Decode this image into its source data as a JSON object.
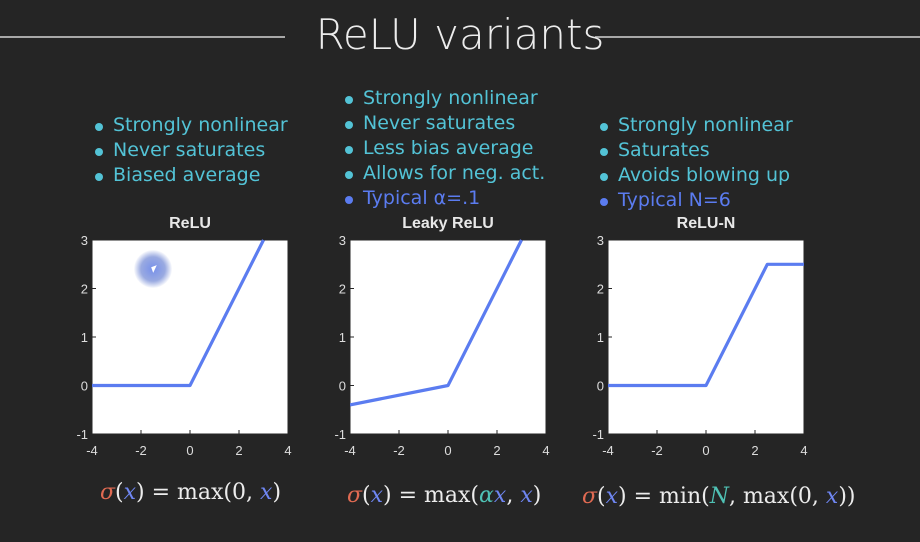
{
  "title": "ReLU variants",
  "panels": [
    {
      "bullets": [
        "Strongly nonlinear",
        "Never saturates",
        "Biased average"
      ],
      "highlight": [],
      "formula": {
        "lhs": "σ(x)",
        "eq": "=",
        "fn": "max",
        "args": "0, x"
      }
    },
    {
      "bullets": [
        "Strongly nonlinear",
        "Never saturates",
        "Less bias average",
        "Allows for neg. act.",
        "Typical α=.1"
      ],
      "highlight": [
        4
      ],
      "formula": {
        "lhs": "σ(x)",
        "eq": "=",
        "fn": "max",
        "args": "αx, x"
      }
    },
    {
      "bullets": [
        "Strongly nonlinear",
        "Saturates",
        "Avoids blowing up",
        "Typical N=6"
      ],
      "highlight": [
        3
      ],
      "formula": {
        "lhs": "σ(x)",
        "eq": "=",
        "fn": "min",
        "args": "N, max(0, x)"
      }
    }
  ],
  "colors": {
    "background": "#252525",
    "bullet": "#53c3d6",
    "highlight": "#5b7cf0",
    "plot_bg": "#ffffff",
    "line": "#5b7cf0",
    "sigma": "#e06a52",
    "variable": "#6f86f2",
    "parameter": "#4fc1b4"
  },
  "chart_data": [
    {
      "type": "line",
      "title": "ReLU",
      "xlim": [
        -4,
        4
      ],
      "ylim": [
        -1,
        3
      ],
      "xticks": [
        -4,
        -2,
        0,
        2,
        4
      ],
      "yticks": [
        -1,
        0,
        1,
        2,
        3
      ],
      "x": [
        -4,
        0,
        3
      ],
      "y": [
        0,
        0,
        3
      ]
    },
    {
      "type": "line",
      "title": "Leaky ReLU",
      "xlim": [
        -4,
        4
      ],
      "ylim": [
        -1,
        3
      ],
      "xticks": [
        -4,
        -2,
        0,
        2,
        4
      ],
      "yticks": [
        -1,
        0,
        1,
        2,
        3
      ],
      "x": [
        -4,
        0,
        3
      ],
      "y": [
        -0.4,
        0,
        3
      ]
    },
    {
      "type": "line",
      "title": "ReLU-N",
      "xlim": [
        -4,
        4
      ],
      "ylim": [
        -1,
        3
      ],
      "xticks": [
        -4,
        -2,
        0,
        2,
        4
      ],
      "yticks": [
        -1,
        0,
        1,
        2,
        3
      ],
      "x": [
        -4,
        0,
        2.5,
        4
      ],
      "y": [
        0,
        0,
        2.5,
        2.5
      ]
    }
  ]
}
